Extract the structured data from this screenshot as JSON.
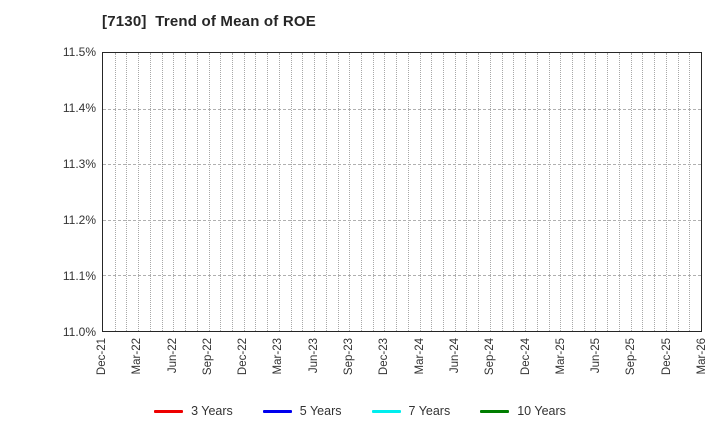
{
  "chart_data": {
    "type": "line",
    "title": "[7130]  Trend of Mean of ROE",
    "categories": [
      "Dec-21",
      "Mar-22",
      "Jun-22",
      "Sep-22",
      "Dec-22",
      "Mar-23",
      "Jun-23",
      "Sep-23",
      "Dec-23",
      "Mar-24",
      "Jun-24",
      "Sep-24",
      "Dec-24",
      "Mar-25",
      "Jun-25",
      "Sep-25",
      "Dec-25",
      "Mar-26"
    ],
    "months_per_category": 3,
    "total_month_intervals": 51,
    "ylim": [
      11.0,
      11.5
    ],
    "yticks": [
      "11.0%",
      "11.1%",
      "11.2%",
      "11.3%",
      "11.4%",
      "11.5%"
    ],
    "grid": "on",
    "legend_position": "bottom-center",
    "series": [
      {
        "name": "3 Years",
        "color": "#ee0000",
        "values": []
      },
      {
        "name": "5 Years",
        "color": "#0000ee",
        "values": []
      },
      {
        "name": "7 Years",
        "color": "#00eeee",
        "values": []
      },
      {
        "name": "10 Years",
        "color": "#007d00",
        "values": []
      }
    ]
  },
  "colors": {
    "plot_border": "#262626",
    "vgrid": "#a8a8a8",
    "hgrid": "#b0b0b0",
    "tick_text": "#333333",
    "title_text": "#262626",
    "background": "#ffffff"
  }
}
